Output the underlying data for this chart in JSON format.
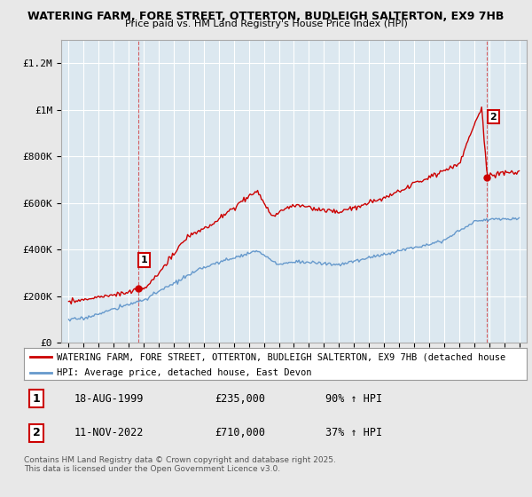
{
  "title1": "WATERING FARM, FORE STREET, OTTERTON, BUDLEIGH SALTERTON, EX9 7HB",
  "title2": "Price paid vs. HM Land Registry's House Price Index (HPI)",
  "background_color": "#e8e8e8",
  "plot_bg_color": "#dce8f0",
  "grid_color": "#ffffff",
  "red_color": "#cc0000",
  "blue_color": "#6699cc",
  "ylim": [
    0,
    1300000
  ],
  "yticks": [
    0,
    200000,
    400000,
    600000,
    800000,
    1000000,
    1200000
  ],
  "ytick_labels": [
    "£0",
    "£200K",
    "£400K",
    "£600K",
    "£800K",
    "£1M",
    "£1.2M"
  ],
  "xmin": 1994.5,
  "xmax": 2025.5,
  "sale1_x": 1999.633,
  "sale1_y": 235000,
  "sale1_label": "1",
  "sale2_x": 2022.867,
  "sale2_y": 710000,
  "sale2_label": "2",
  "legend_red": "WATERING FARM, FORE STREET, OTTERTON, BUDLEIGH SALTERTON, EX9 7HB (detached house",
  "legend_blue": "HPI: Average price, detached house, East Devon",
  "table_row1": [
    "1",
    "18-AUG-1999",
    "£235,000",
    "90% ↑ HPI"
  ],
  "table_row2": [
    "2",
    "11-NOV-2022",
    "£710,000",
    "37% ↑ HPI"
  ],
  "footer": "Contains HM Land Registry data © Crown copyright and database right 2025.\nThis data is licensed under the Open Government Licence v3.0."
}
